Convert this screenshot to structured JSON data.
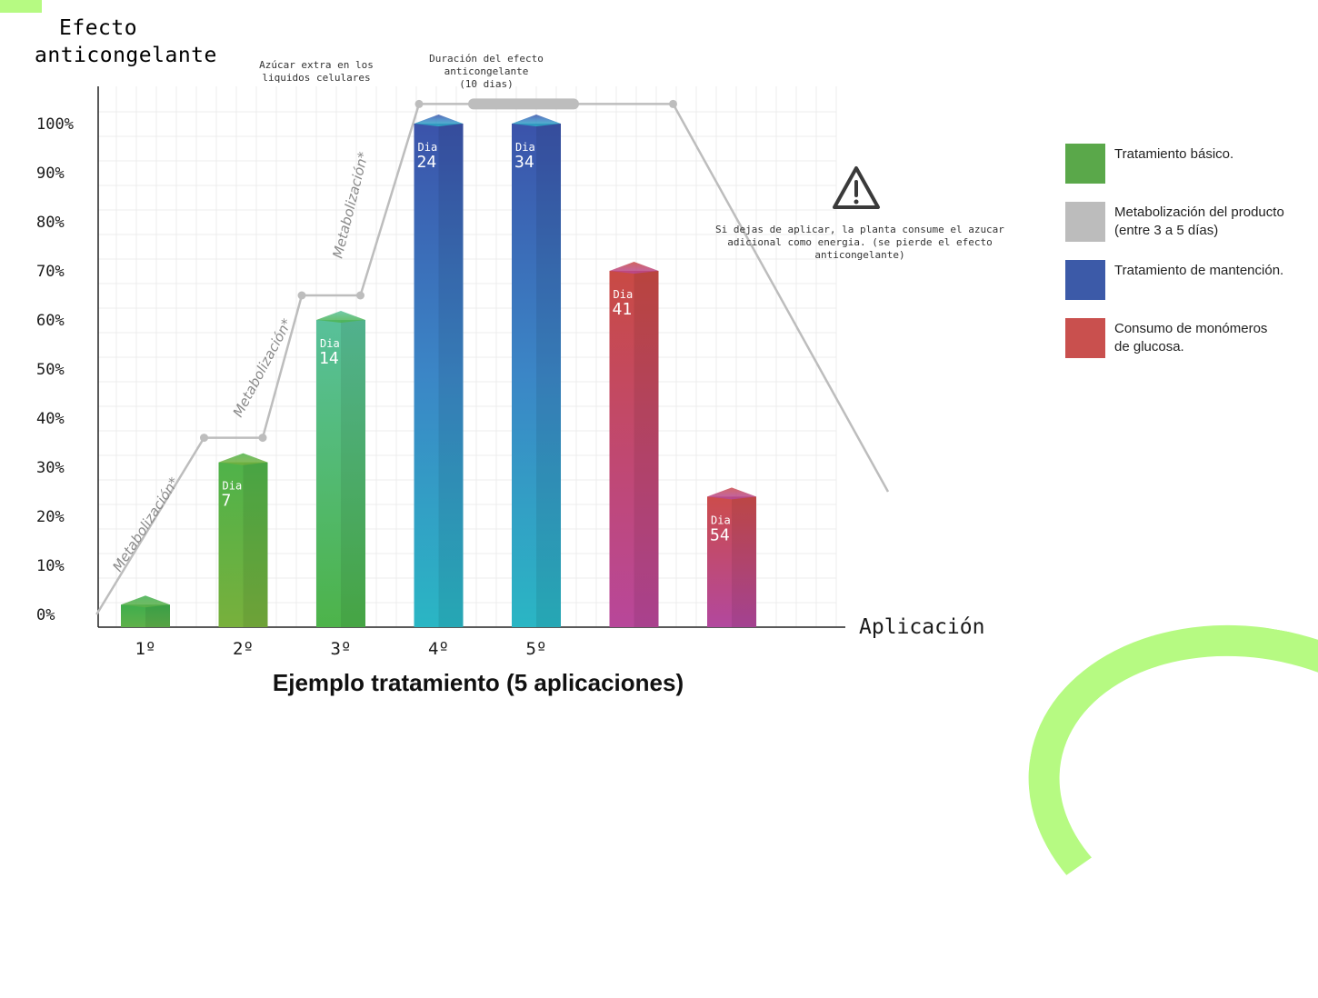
{
  "colors": {
    "accent": "#b6fa82",
    "basic": "#5aa84a",
    "metab": "#bcbcbc",
    "maint": "#3c5aa8",
    "consumo": "#c9504e"
  },
  "ylabel": [
    "Efecto",
    "anticongelante"
  ],
  "xlabel": "Aplicación",
  "title": "Ejemplo tratamiento (5 aplicaciones)",
  "annotations": {
    "azucar": [
      "Azúcar extra en los",
      "liquidos celulares"
    ],
    "duracion": [
      "Duración del efecto",
      "anticongelante",
      "(10 dias)"
    ],
    "warning": [
      "Si dejas de aplicar, la planta consume el azucar",
      "adicional como energia. (se pierde el efecto",
      "anticongelante)"
    ],
    "metab_label": "Metabolización*"
  },
  "legend": [
    {
      "label": "Tratamiento básico.",
      "color": "#5aa84a"
    },
    {
      "label": "Metabolización del producto\n(entre 3 a 5 días)",
      "color": "#bcbcbc"
    },
    {
      "label": "Tratamiento de mantención.",
      "color": "#3c5aa8"
    },
    {
      "label": "Consumo de monómeros\nde glucosa.",
      "color": "#c9504e"
    }
  ],
  "chart_data": {
    "type": "bar",
    "title": "Ejemplo tratamiento (5 aplicaciones)",
    "xlabel": "Aplicación",
    "ylabel": "Efecto anticongelante",
    "ylim": [
      0,
      100
    ],
    "yticks": [
      "0%",
      "10%",
      "20%",
      "30%",
      "40%",
      "50%",
      "60%",
      "70%",
      "80%",
      "90%",
      "100%"
    ],
    "grid": true,
    "categories": [
      "1º",
      "2º",
      "3º",
      "4º",
      "5º",
      "",
      ""
    ],
    "bars": [
      {
        "value": 2,
        "day": "",
        "day_prefix": "",
        "group": "basic"
      },
      {
        "value": 31,
        "day": "7",
        "day_prefix": "Dia",
        "group": "basic"
      },
      {
        "value": 60,
        "day": "14",
        "day_prefix": "Dia",
        "group": "basic"
      },
      {
        "value": 100,
        "day": "24",
        "day_prefix": "Dia",
        "group": "maint"
      },
      {
        "value": 100,
        "day": "34",
        "day_prefix": "Dia",
        "group": "maint"
      },
      {
        "value": 70,
        "day": "41",
        "day_prefix": "Dia",
        "group": "consumo"
      },
      {
        "value": 24,
        "day": "54",
        "day_prefix": "Dia",
        "group": "consumo"
      }
    ],
    "metabolization_line": {
      "x": [
        0.5,
        1.6,
        2.2,
        2.6,
        3.2,
        3.8,
        4.4,
        6.4,
        8.6
      ],
      "y": [
        0,
        36,
        36,
        65,
        65,
        104,
        104,
        104,
        25
      ]
    }
  }
}
